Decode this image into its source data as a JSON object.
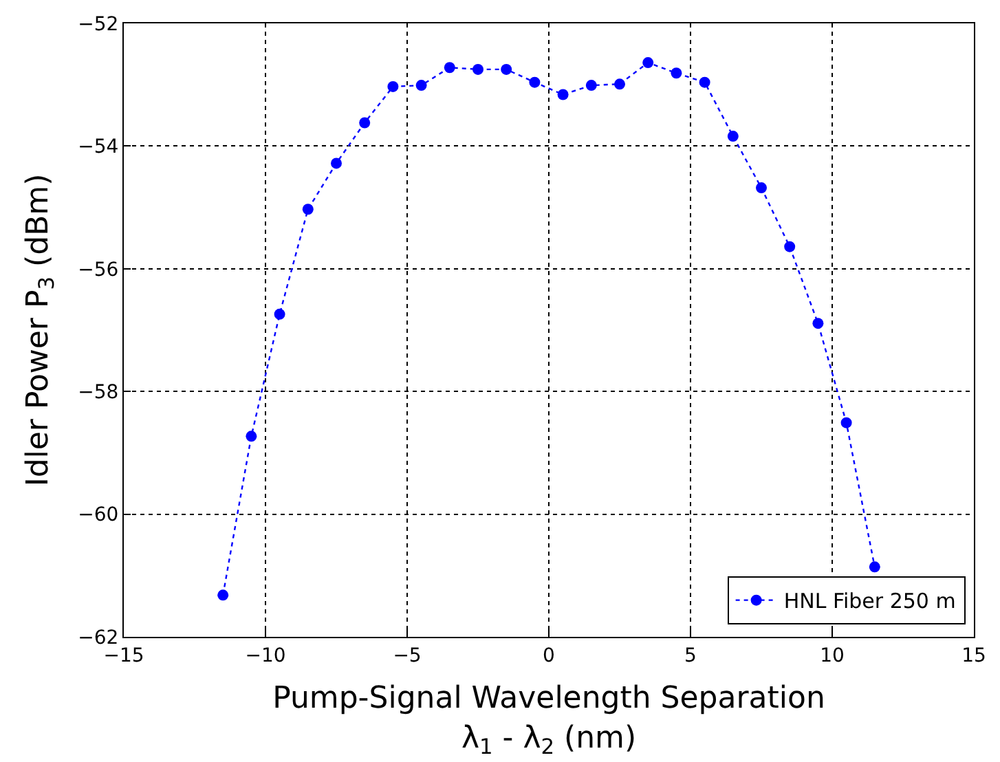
{
  "chart_data": {
    "type": "line",
    "xlabel": "Pump-Signal Wavelength Separation\nλ$_{1}$ - λ$_{2}$ (nm)",
    "ylabel": "Idler Power P$_{3}$ (dBm)",
    "x": [
      -11.5,
      -10.5,
      -9.5,
      -8.5,
      -7.5,
      -6.5,
      -5.5,
      -4.5,
      -3.5,
      -2.5,
      -1.5,
      -0.5,
      0.5,
      1.5,
      2.5,
      3.5,
      4.5,
      5.5,
      6.5,
      7.5,
      8.5,
      9.5,
      10.5,
      11.5
    ],
    "series": [
      {
        "name": "HNL Fiber 250 m",
        "color": "#0000ff",
        "values": [
          -61.32,
          -58.73,
          -56.74,
          -55.03,
          -54.28,
          -53.62,
          -53.03,
          -53.01,
          -52.72,
          -52.75,
          -52.75,
          -52.96,
          -53.16,
          -53.01,
          -52.99,
          -52.64,
          -52.81,
          -52.96,
          -53.84,
          -54.68,
          -55.64,
          -56.89,
          -58.51,
          -60.86
        ]
      }
    ],
    "xlim": [
      -15,
      15
    ],
    "xticks": [
      {
        "value": -15,
        "label": "−15"
      },
      {
        "value": -10,
        "label": "−10"
      },
      {
        "value": -5,
        "label": "−5"
      },
      0,
      5,
      10,
      15
    ],
    "ylim": [
      -62,
      -52
    ],
    "yticks": [
      {
        "value": -62,
        "label": "−62"
      },
      {
        "value": -60,
        "label": "−60"
      },
      {
        "value": -58,
        "label": "−58"
      },
      {
        "value": -56,
        "label": "−56"
      },
      {
        "value": -54,
        "label": "−54"
      },
      {
        "value": -52,
        "label": "−52"
      }
    ],
    "grid": true,
    "legend": "bottom right",
    "marker": "circle",
    "line_style": "dotted"
  }
}
